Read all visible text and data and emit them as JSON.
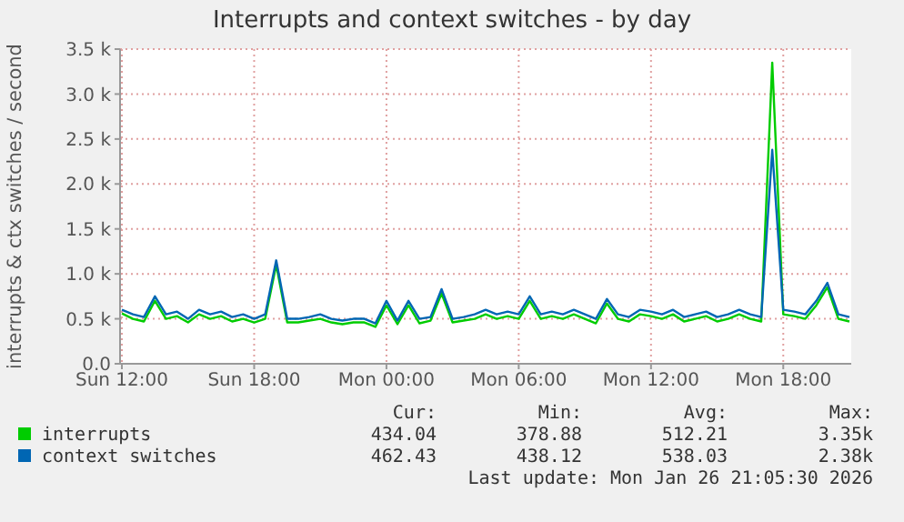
{
  "chart_data": {
    "type": "line",
    "title": "Interrupts and context switches - by day",
    "ylabel": "interrupts & ctx switches / second",
    "x": [
      "2026-01-25T12:00",
      "2026-01-25T12:30",
      "2026-01-25T13:00",
      "2026-01-25T13:30",
      "2026-01-25T14:00",
      "2026-01-25T14:30",
      "2026-01-25T15:00",
      "2026-01-25T15:30",
      "2026-01-25T16:00",
      "2026-01-25T16:30",
      "2026-01-25T17:00",
      "2026-01-25T17:30",
      "2026-01-25T18:00",
      "2026-01-25T18:30",
      "2026-01-25T19:00",
      "2026-01-25T19:30",
      "2026-01-25T20:00",
      "2026-01-25T20:30",
      "2026-01-25T21:00",
      "2026-01-25T21:30",
      "2026-01-25T22:00",
      "2026-01-25T22:30",
      "2026-01-25T23:00",
      "2026-01-25T23:30",
      "2026-01-26T00:00",
      "2026-01-26T00:30",
      "2026-01-26T01:00",
      "2026-01-26T01:30",
      "2026-01-26T02:00",
      "2026-01-26T02:30",
      "2026-01-26T03:00",
      "2026-01-26T03:30",
      "2026-01-26T04:00",
      "2026-01-26T04:30",
      "2026-01-26T05:00",
      "2026-01-26T05:30",
      "2026-01-26T06:00",
      "2026-01-26T06:30",
      "2026-01-26T07:00",
      "2026-01-26T07:30",
      "2026-01-26T08:00",
      "2026-01-26T08:30",
      "2026-01-26T09:00",
      "2026-01-26T09:30",
      "2026-01-26T10:00",
      "2026-01-26T10:30",
      "2026-01-26T11:00",
      "2026-01-26T11:30",
      "2026-01-26T12:00",
      "2026-01-26T12:30",
      "2026-01-26T13:00",
      "2026-01-26T13:30",
      "2026-01-26T14:00",
      "2026-01-26T14:30",
      "2026-01-26T15:00",
      "2026-01-26T15:30",
      "2026-01-26T16:00",
      "2026-01-26T16:30",
      "2026-01-26T17:00",
      "2026-01-26T17:30",
      "2026-01-26T18:00",
      "2026-01-26T18:30",
      "2026-01-26T19:00",
      "2026-01-26T19:30",
      "2026-01-26T20:00",
      "2026-01-26T20:30",
      "2026-01-26T21:00"
    ],
    "series": [
      {
        "name": "interrupts",
        "color": "#00cc00",
        "values": [
          560,
          500,
          470,
          700,
          500,
          530,
          460,
          550,
          500,
          530,
          470,
          500,
          460,
          500,
          1100,
          460,
          460,
          480,
          500,
          460,
          440,
          460,
          460,
          410,
          650,
          440,
          650,
          450,
          480,
          780,
          460,
          480,
          500,
          550,
          500,
          530,
          500,
          700,
          500,
          530,
          500,
          550,
          500,
          450,
          670,
          500,
          470,
          550,
          530,
          500,
          550,
          470,
          500,
          530,
          470,
          500,
          550,
          500,
          470,
          3350,
          550,
          530,
          500,
          650,
          850,
          500,
          470
        ]
      },
      {
        "name": "context switches",
        "color": "#0066b3",
        "values": [
          600,
          550,
          520,
          750,
          550,
          580,
          500,
          600,
          550,
          580,
          520,
          550,
          500,
          550,
          1150,
          500,
          500,
          520,
          550,
          500,
          480,
          500,
          500,
          450,
          700,
          480,
          700,
          500,
          520,
          830,
          500,
          520,
          550,
          600,
          550,
          580,
          550,
          750,
          550,
          580,
          550,
          600,
          550,
          500,
          720,
          550,
          520,
          600,
          580,
          550,
          600,
          520,
          550,
          580,
          520,
          550,
          600,
          550,
          520,
          2380,
          600,
          580,
          550,
          700,
          900,
          550,
          520
        ]
      }
    ],
    "xlim": [
      "2026-01-25T11:55",
      "2026-01-26T21:05"
    ],
    "xticks": [
      {
        "value": "2026-01-25T12:00",
        "label": "Sun 12:00"
      },
      {
        "value": "2026-01-25T18:00",
        "label": "Sun 18:00"
      },
      {
        "value": "2026-01-26T00:00",
        "label": "Mon 00:00"
      },
      {
        "value": "2026-01-26T06:00",
        "label": "Mon 06:00"
      },
      {
        "value": "2026-01-26T12:00",
        "label": "Mon 12:00"
      },
      {
        "value": "2026-01-26T18:00",
        "label": "Mon 18:00"
      }
    ],
    "ylim": [
      0,
      3500
    ],
    "yticks": [
      {
        "value": 0,
        "label": "0.0"
      },
      {
        "value": 500,
        "label": "0.5 k"
      },
      {
        "value": 1000,
        "label": "1.0 k"
      },
      {
        "value": 1500,
        "label": "1.5 k"
      },
      {
        "value": 2000,
        "label": "2.0 k"
      },
      {
        "value": 2500,
        "label": "2.5 k"
      },
      {
        "value": 3000,
        "label": "3.0 k"
      },
      {
        "value": 3500,
        "label": "3.5 k"
      }
    ],
    "grid": true,
    "legend": "bottom left",
    "annotations": [
      "Cur:",
      "Min:",
      "Avg:",
      "Max:",
      "434.04",
      "378.88",
      "512.21",
      "3.35k",
      "462.43",
      "438.12",
      "538.03",
      "2.38k",
      "Last update: Mon Jan 26 21:05:30 2026"
    ]
  }
}
